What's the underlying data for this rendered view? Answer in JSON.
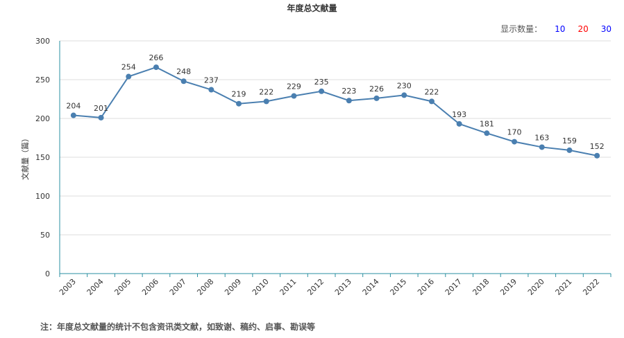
{
  "chart_data": {
    "type": "line",
    "title": "年度总文献量",
    "ylabel": "文献量（篇）",
    "xlabel": "",
    "categories": [
      "2003",
      "2004",
      "2005",
      "2006",
      "2007",
      "2008",
      "2009",
      "2010",
      "2011",
      "2012",
      "2013",
      "2014",
      "2015",
      "2016",
      "2017",
      "2018",
      "2019",
      "2020",
      "2021",
      "2022"
    ],
    "series": [
      {
        "values": [
          204,
          201,
          254,
          266,
          248,
          237,
          219,
          222,
          229,
          235,
          223,
          226,
          230,
          222,
          193,
          181,
          170,
          163,
          159,
          152
        ]
      }
    ],
    "ylim": [
      0,
      300
    ],
    "yticks": [
      0,
      50,
      100,
      150,
      200,
      250,
      300
    ],
    "grid": true,
    "legend": "none",
    "colors": {
      "line": "#4a7fb0",
      "marker": "#4a7fb0",
      "axis": "#2a8fa0",
      "grid": "#dddddd"
    }
  },
  "controls": {
    "display_count_label": "显示数量：",
    "options": [
      {
        "label": "10",
        "color": "#0000ff"
      },
      {
        "label": "20",
        "color": "#ff0000"
      },
      {
        "label": "30",
        "color": "#0000ff"
      }
    ]
  },
  "footnote": "注：年度总文献量的统计不包含资讯类文献，如致谢、稿约、启事、勘误等"
}
